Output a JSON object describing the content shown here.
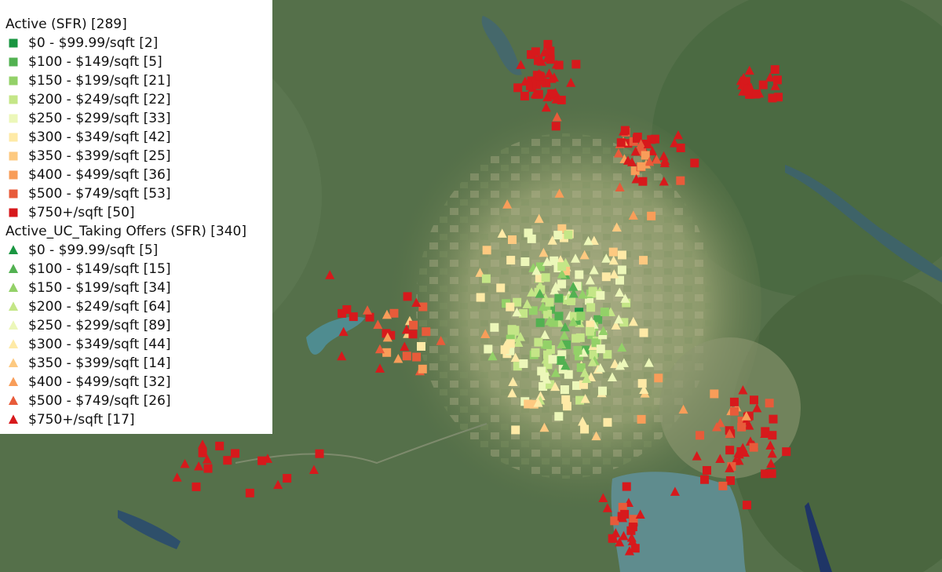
{
  "legend": {
    "groups": [
      {
        "title": "Active (SFR) [289]",
        "shape": "square",
        "items": [
          {
            "label": "$0 - $99.99/sqft [2]",
            "color": "#1a9641"
          },
          {
            "label": "$100 - $149/sqft [5]",
            "color": "#52b151"
          },
          {
            "label": "$150 - $199/sqft [21]",
            "color": "#93d168"
          },
          {
            "label": "$200 - $249/sqft [22]",
            "color": "#c4e687"
          },
          {
            "label": "$250 - $299/sqft [33]",
            "color": "#ecf7b9"
          },
          {
            "label": "$300 - $349/sqft [42]",
            "color": "#feeaa6"
          },
          {
            "label": "$350 - $399/sqft [25]",
            "color": "#fdc980"
          },
          {
            "label": "$400 - $499/sqft [36]",
            "color": "#f89d59"
          },
          {
            "label": "$500 - $749/sqft [53]",
            "color": "#e85b3a"
          },
          {
            "label": "$750+/sqft [50]",
            "color": "#d7191c"
          }
        ]
      },
      {
        "title": "Active_UC_Taking Offers (SFR) [340]",
        "shape": "triangle",
        "items": [
          {
            "label": "$0 - $99.99/sqft [5]",
            "color": "#1a9641"
          },
          {
            "label": "$100 - $149/sqft [15]",
            "color": "#52b151"
          },
          {
            "label": "$150 - $199/sqft [34]",
            "color": "#93d168"
          },
          {
            "label": "$200 - $249/sqft [64]",
            "color": "#c4e687"
          },
          {
            "label": "$250 - $299/sqft [89]",
            "color": "#ecf7b9"
          },
          {
            "label": "$300 - $349/sqft [44]",
            "color": "#feeaa6"
          },
          {
            "label": "$350 - $399/sqft [14]",
            "color": "#fdc980"
          },
          {
            "label": "$400 - $499/sqft [32]",
            "color": "#f89d59"
          },
          {
            "label": "$500 - $749/sqft [26]",
            "color": "#e85b3a"
          },
          {
            "label": "$750+/sqft [17]",
            "color": "#d7191c"
          }
        ]
      }
    ]
  }
}
